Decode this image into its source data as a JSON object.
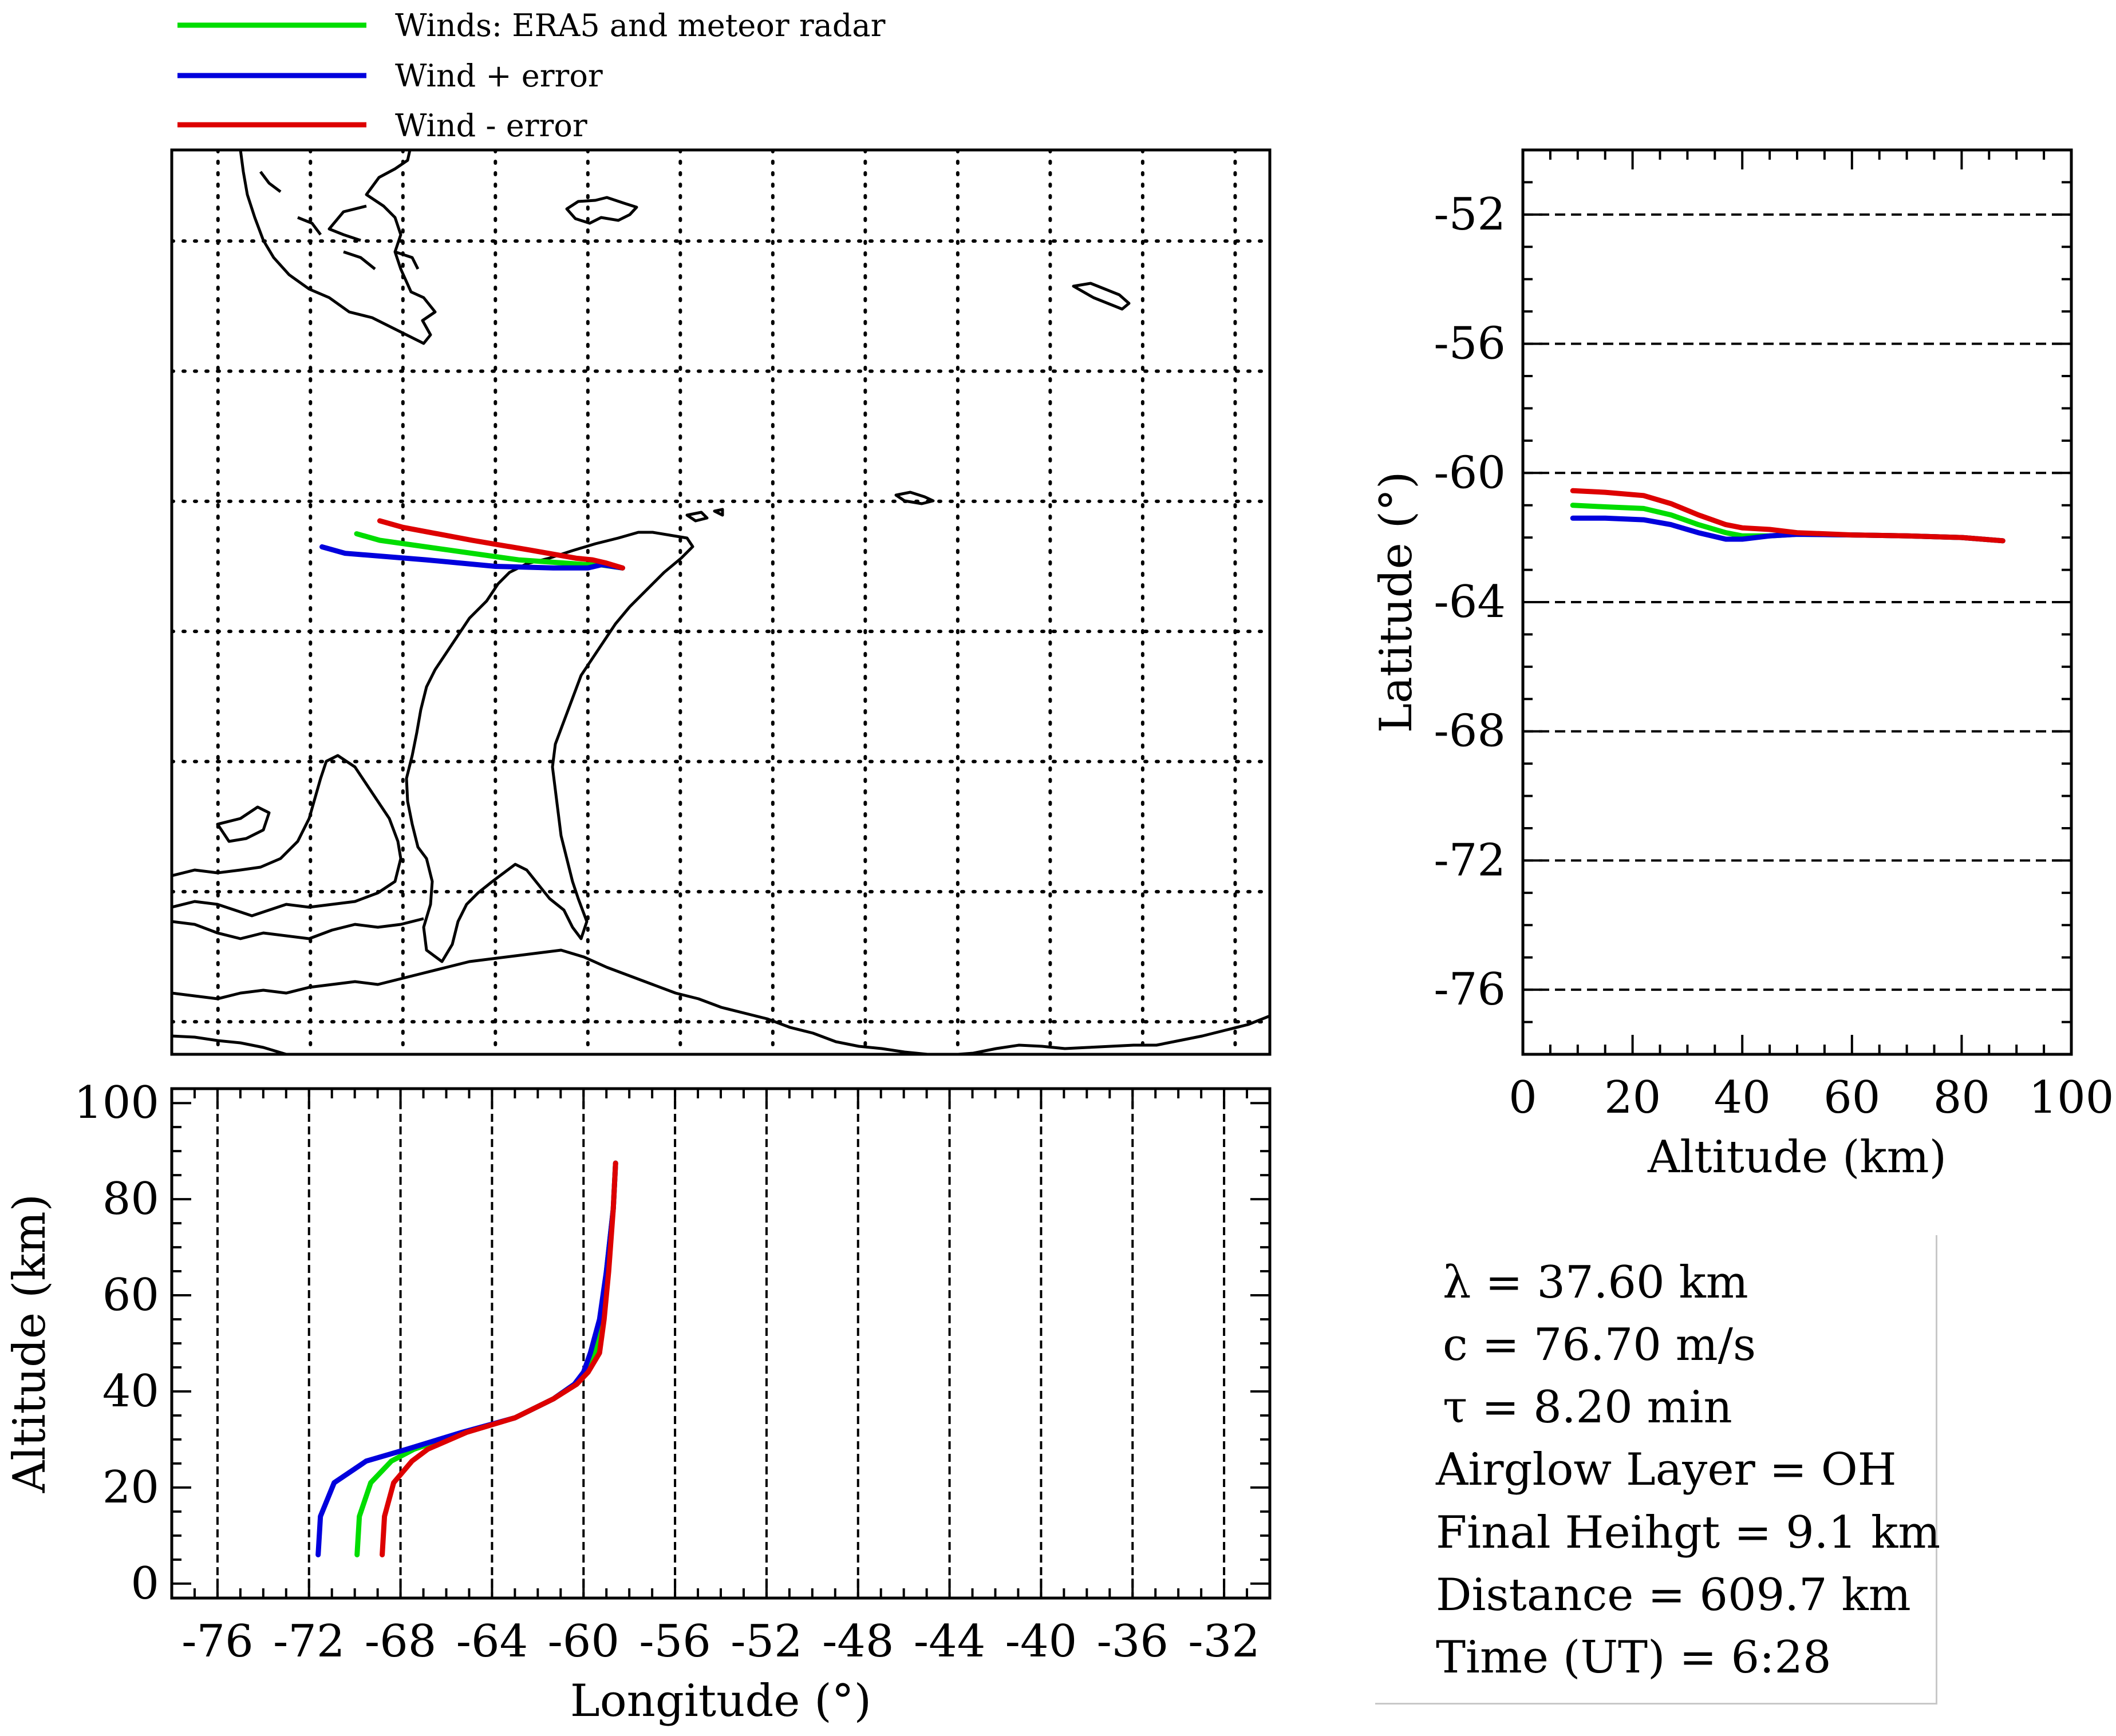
{
  "legend": [
    {
      "label": "Winds: ERA5 and meteor radar",
      "color": "#00dd00"
    },
    {
      "label": "Wind + error",
      "color": "#0000dd"
    },
    {
      "label": "Wind - error",
      "color": "#dd0000"
    }
  ],
  "chart_data": [
    {
      "type": "line",
      "panel": "map",
      "title": "",
      "xlabel": "",
      "ylabel": "",
      "xlim": [
        -78,
        -30.5
      ],
      "ylim": [
        -77,
        -49.2
      ],
      "grid": "dotted",
      "x_gridlines": [
        -76,
        -72,
        -68,
        -64,
        -60,
        -56,
        -52,
        -48,
        -44,
        -40,
        -36,
        -32
      ],
      "y_gridlines": [
        -52,
        -56,
        -60,
        -64,
        -68,
        -72,
        -76
      ],
      "series": [
        {
          "name": "Winds: ERA5 and meteor radar",
          "color": "#00dd00",
          "x": [
            -70.0,
            -69.0,
            -66.0,
            -63.0,
            -61.0,
            -60.0,
            -59.5,
            -58.5
          ],
          "y": [
            -61.0,
            -61.2,
            -61.5,
            -61.8,
            -61.9,
            -61.95,
            -61.95,
            -62.05
          ]
        },
        {
          "name": "Wind + error",
          "color": "#0000dd",
          "x": [
            -71.5,
            -70.5,
            -67.0,
            -64.0,
            -61.5,
            -60.0,
            -59.4,
            -58.5
          ],
          "y": [
            -61.4,
            -61.6,
            -61.8,
            -62.0,
            -62.05,
            -62.05,
            -61.95,
            -62.05
          ]
        },
        {
          "name": "Wind - error",
          "color": "#dd0000",
          "x": [
            -69.0,
            -68.0,
            -65.0,
            -62.5,
            -60.5,
            -59.8,
            -59.2,
            -58.5
          ],
          "y": [
            -60.6,
            -60.8,
            -61.2,
            -61.5,
            -61.75,
            -61.8,
            -61.9,
            -62.05
          ]
        }
      ]
    },
    {
      "type": "line",
      "panel": "latitude-vs-altitude",
      "title": "",
      "xlabel": "Altitude (km)",
      "ylabel": "Latitude (°)",
      "xlim": [
        0,
        100
      ],
      "ylim": [
        -78,
        -50
      ],
      "xticks": [
        0,
        20,
        40,
        60,
        80,
        100
      ],
      "yticks": [
        -52,
        -56,
        -60,
        -64,
        -68,
        -72,
        -76
      ],
      "x_tick_labels": [
        "0",
        "20",
        "40",
        "60",
        "80",
        "100"
      ],
      "y_tick_labels": [
        "-52",
        "-56",
        "-60",
        "-64",
        "-68",
        "-72",
        "-76"
      ],
      "grid": "dashed horizontal",
      "series": [
        {
          "name": "Winds: ERA5 and meteor radar",
          "color": "#00dd00",
          "x": [
            9.1,
            15,
            22,
            27,
            32,
            37,
            40,
            45,
            50,
            60,
            70,
            80,
            87.5
          ],
          "y": [
            -61.0,
            -61.05,
            -61.1,
            -61.3,
            -61.6,
            -61.85,
            -61.95,
            -61.95,
            -61.9,
            -61.92,
            -61.95,
            -62.0,
            -62.1
          ]
        },
        {
          "name": "Wind + error",
          "color": "#0000dd",
          "x": [
            9.1,
            15,
            22,
            27,
            32,
            37,
            40,
            45,
            50,
            60,
            70,
            80,
            87.5
          ],
          "y": [
            -61.4,
            -61.4,
            -61.45,
            -61.6,
            -61.85,
            -62.05,
            -62.05,
            -61.95,
            -61.9,
            -61.92,
            -61.95,
            -62.0,
            -62.1
          ]
        },
        {
          "name": "Wind - error",
          "color": "#dd0000",
          "x": [
            9.1,
            15,
            22,
            27,
            32,
            37,
            40,
            45,
            50,
            60,
            70,
            80,
            87.5
          ],
          "y": [
            -60.55,
            -60.6,
            -60.7,
            -60.95,
            -61.3,
            -61.6,
            -61.7,
            -61.75,
            -61.85,
            -61.92,
            -61.95,
            -62.0,
            -62.1
          ]
        }
      ]
    },
    {
      "type": "line",
      "panel": "altitude-vs-longitude",
      "title": "",
      "xlabel": "Longitude (°)",
      "ylabel": "Altitude (km)",
      "xlim": [
        -78,
        -30
      ],
      "ylim": [
        -3,
        103
      ],
      "xticks": [
        -76,
        -72,
        -68,
        -64,
        -60,
        -56,
        -52,
        -48,
        -44,
        -40,
        -36,
        -32
      ],
      "yticks": [
        0,
        20,
        40,
        60,
        80,
        100
      ],
      "x_tick_labels": [
        "-76",
        "-72",
        "-68",
        "-64",
        "-60",
        "-56",
        "-52",
        "-48",
        "-44",
        "-40",
        "-36",
        "-32"
      ],
      "y_tick_labels": [
        "0",
        "20",
        "40",
        "60",
        "80",
        "100"
      ],
      "grid": "dashed vertical",
      "series": [
        {
          "name": "Winds: ERA5 and meteor radar",
          "color": "#00dd00",
          "x": [
            -69.9,
            -69.8,
            -69.3,
            -68.4,
            -67.4,
            -65.2,
            -63.0,
            -61.3,
            -60.4,
            -59.9,
            -59.5,
            -59.2,
            -59.0,
            -58.7,
            -58.6
          ],
          "y": [
            6,
            14,
            21,
            25.5,
            28,
            31.5,
            34.5,
            38.5,
            41.5,
            44,
            48,
            55,
            65,
            78,
            87.5
          ]
        },
        {
          "name": "Wind + error",
          "color": "#0000dd",
          "x": [
            -71.6,
            -71.5,
            -70.9,
            -69.5,
            -67.7,
            -65.3,
            -63.0,
            -61.3,
            -60.4,
            -60.0,
            -59.7,
            -59.3,
            -59.0,
            -58.7,
            -58.6
          ],
          "y": [
            6,
            14,
            21,
            25.5,
            28,
            31.5,
            34.5,
            38.5,
            41.5,
            44,
            48,
            55,
            65,
            78,
            87.5
          ]
        },
        {
          "name": "Wind - error",
          "color": "#dd0000",
          "x": [
            -68.8,
            -68.7,
            -68.3,
            -67.5,
            -66.8,
            -65.1,
            -63.0,
            -61.3,
            -60.3,
            -59.8,
            -59.3,
            -59.1,
            -58.9,
            -58.7,
            -58.6
          ],
          "y": [
            6,
            14,
            21,
            25.5,
            28,
            31.5,
            34.5,
            38.5,
            41.5,
            44,
            48,
            55,
            65,
            78,
            87.5
          ]
        }
      ]
    }
  ],
  "info": {
    "wavelength": "λ = 37.60  km",
    "phase_speed": "c = 76.70 m/s",
    "period": "τ = 8.20 min",
    "airglow_layer": "Airglow Layer = OH",
    "final_height": "Final Heihgt = 9.1 km",
    "distance": "Distance = 609.7 km",
    "time": "Time (UT) = 6:28"
  }
}
